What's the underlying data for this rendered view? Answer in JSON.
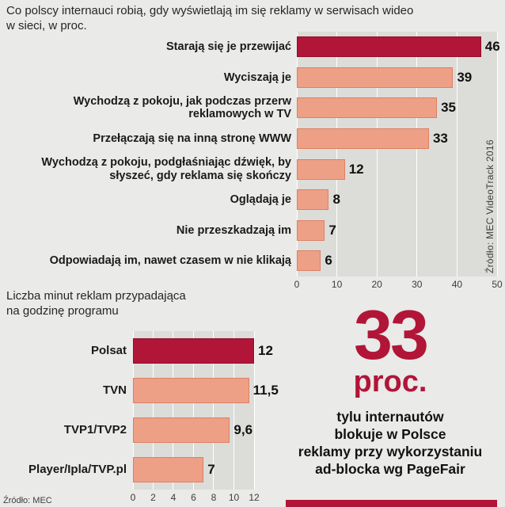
{
  "colors": {
    "page_bg": "#eaeae8",
    "plot_bg": "#dcdcd9",
    "grid": "#ffffff",
    "dark_red": "#b11537",
    "dark_red_border": "#8e0f2c",
    "salmon": "#eda086",
    "salmon_border": "#dd8063",
    "text": "#1a1a1a",
    "muted": "#3c3c3c"
  },
  "chart_data": [
    {
      "type": "bar",
      "orientation": "horizontal",
      "title": "Co polscy internauci robią, gdy wyświetlają im się reklamy w serwisach wideo w sieci, w proc.",
      "categories": [
        "Starają się je przewijać",
        "Wyciszają je",
        "Wychodzą z pokoju, jak podczas przerw reklamowych w TV",
        "Przełączają się na inną stronę WWW",
        "Wychodzą z pokoju, podgłaśniając dźwięk, by słyszeć, gdy reklama się skończy",
        "Oglądają je",
        "Nie przeszkadzają im",
        "Odpowiadają im, nawet czasem w nie klikają"
      ],
      "values": [
        46,
        39,
        35,
        33,
        12,
        8,
        7,
        6
      ],
      "value_labels": [
        "46",
        "39",
        "35",
        "33",
        "12",
        "8",
        "7",
        "6"
      ],
      "xlim": [
        0,
        50
      ],
      "xticks": [
        "0",
        "10",
        "20",
        "30",
        "40",
        "50"
      ],
      "highlight_index": 0,
      "grid": true,
      "legend": false,
      "source": "Źródło: MEC VideoTrack 2016"
    },
    {
      "type": "bar",
      "orientation": "horizontal",
      "title": "Liczba minut reklam przypadająca na godzinę programu",
      "categories": [
        "Polsat",
        "TVN",
        "TVP1/TVP2",
        "Player/Ipla/TVP.pl"
      ],
      "values": [
        12,
        11.5,
        9.6,
        7
      ],
      "value_labels": [
        "12",
        "11,5",
        "9,6",
        "7"
      ],
      "xlim": [
        0,
        12
      ],
      "xticks": [
        "0",
        "2",
        "4",
        "6",
        "8",
        "10",
        "12"
      ],
      "highlight_index": 0,
      "grid": true,
      "legend": false,
      "source": "Źródło: MEC"
    }
  ],
  "stat": {
    "number": "33",
    "unit": "proc.",
    "lines": [
      "tylu internautów",
      "blokuje w Polsce",
      "reklamy przy wykorzystaniu",
      "ad-blocka wg PageFair"
    ]
  }
}
